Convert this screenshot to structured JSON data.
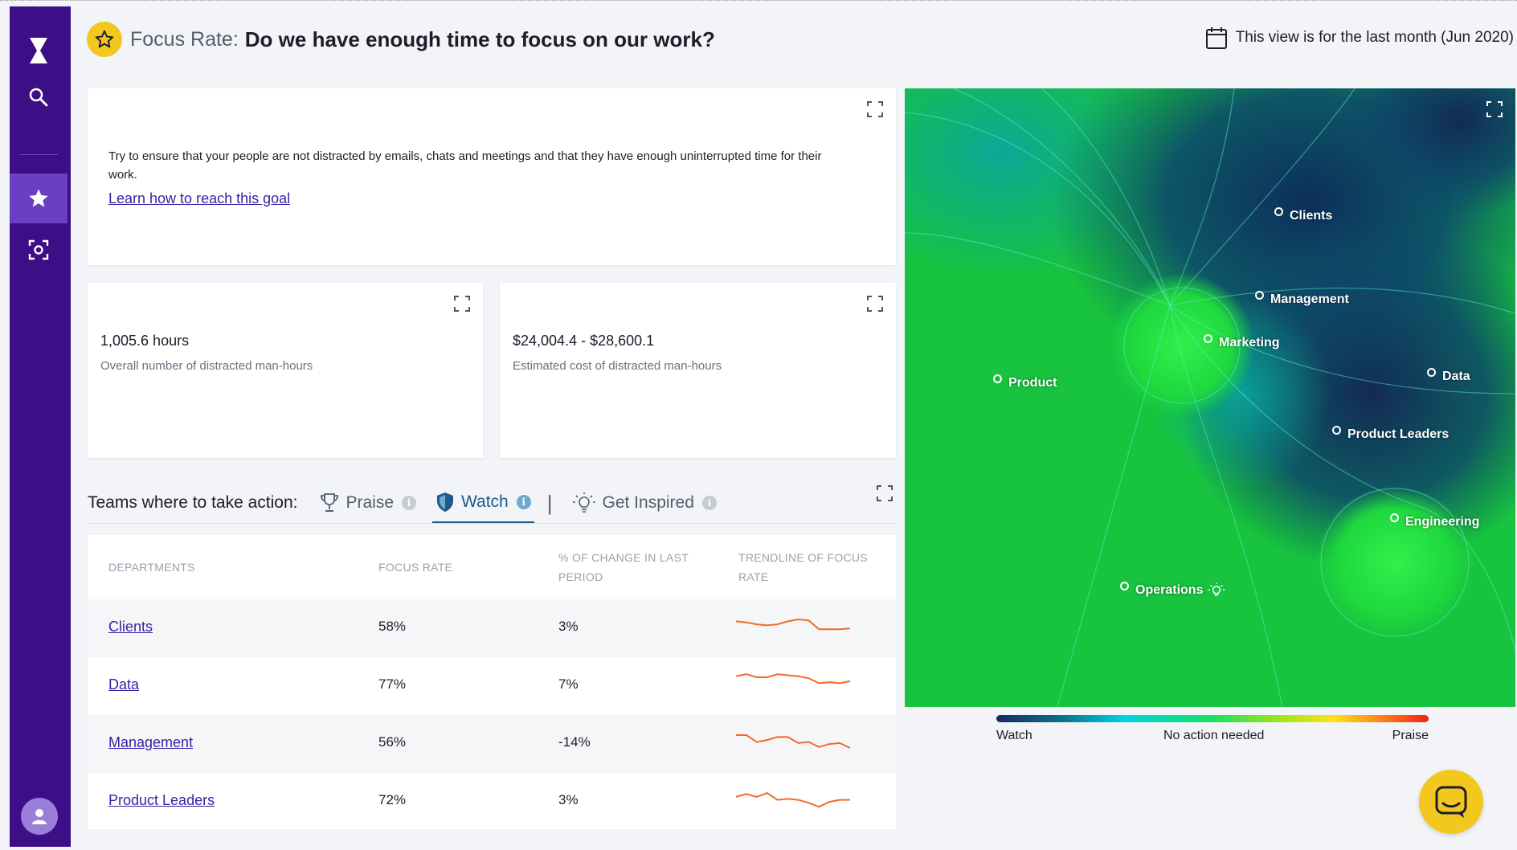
{
  "header": {
    "prefix": "Focus Rate:",
    "title": "Do we have enough time to focus on our work?",
    "period": "This view is for the last month (Jun 2020)"
  },
  "sidebar": {
    "items": [
      {
        "name": "logo",
        "icon": "hourglass-icon"
      },
      {
        "name": "search",
        "icon": "search-icon"
      },
      {
        "name": "goals",
        "icon": "star-icon",
        "active": true
      },
      {
        "name": "focus",
        "icon": "focus-scan-icon"
      }
    ]
  },
  "goal": {
    "text": "Try to ensure that your people are not distracted by emails, chats and meetings and that they have enough uninterrupted time for their work.",
    "link": "Learn how to reach this goal"
  },
  "metrics": [
    {
      "value": "1,005.6 hours",
      "label": "Overall number of distracted man-hours"
    },
    {
      "value": "$24,004.4 - $28,600.1",
      "label": "Estimated cost of distracted man-hours"
    }
  ],
  "teams": {
    "label": "Teams where to take action:",
    "tabs": [
      {
        "label": "Praise",
        "icon": "trophy-icon"
      },
      {
        "label": "Watch",
        "icon": "shield-icon",
        "active": true
      },
      {
        "label": "Get Inspired",
        "icon": "lightbulb-icon"
      }
    ],
    "separator": "|"
  },
  "table": {
    "headers": [
      "DEPARTMENTS",
      "FOCUS RATE",
      "% OF CHANGE IN LAST PERIOD",
      "TRENDLINE OF FOCUS RATE"
    ],
    "rows": [
      {
        "department": "Clients",
        "focus_rate": "58%",
        "change": "3%",
        "trend": [
          60,
          59,
          57,
          56,
          57,
          60,
          62,
          61,
          52,
          52,
          52,
          53
        ]
      },
      {
        "department": "Data",
        "focus_rate": "77%",
        "change": "7%",
        "trend": [
          63,
          65,
          62,
          62,
          65,
          64,
          63,
          61,
          56,
          57,
          56,
          58
        ]
      },
      {
        "department": "Management",
        "focus_rate": "56%",
        "change": "-14%",
        "trend": [
          62,
          62,
          55,
          57,
          60,
          60,
          54,
          55,
          50,
          53,
          54,
          49
        ]
      },
      {
        "department": "Product Leaders",
        "focus_rate": "72%",
        "change": "3%",
        "trend": [
          58,
          61,
          58,
          62,
          55,
          56,
          55,
          52,
          48,
          53,
          55,
          55
        ]
      }
    ],
    "trend_color": "#f26a2a"
  },
  "map": {
    "nodes": [
      {
        "label": "Clients"
      },
      {
        "label": "Management"
      },
      {
        "label": "Marketing"
      },
      {
        "label": "Product"
      },
      {
        "label": "Data"
      },
      {
        "label": "Product Leaders"
      },
      {
        "label": "Engineering"
      },
      {
        "label": "Operations",
        "icon": "lightbulb-icon"
      }
    ]
  },
  "legend": {
    "watch": "Watch",
    "middle": "No action needed",
    "praise": "Praise"
  },
  "colors": {
    "sidebar": "#3c0f86",
    "sidebar_active": "#6b3fc4",
    "accent_yellow": "#f2c81e",
    "link": "#3b1ea3",
    "watch_tab": "#1c5a8a"
  }
}
